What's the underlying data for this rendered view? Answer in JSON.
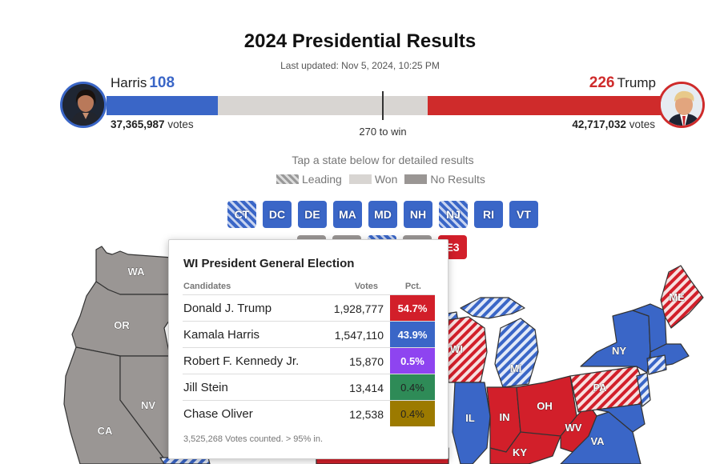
{
  "header": {
    "title": "2024 Presidential Results",
    "updated": "Last updated: Nov 5, 2024, 10:25 PM"
  },
  "harris": {
    "name": "Harris",
    "ev": "108",
    "popular_num": "37,365,987",
    "popular_unit": "votes",
    "color": "#3a66c7"
  },
  "trump": {
    "name": "Trump",
    "ev": "226",
    "popular_num": "42,717,032",
    "popular_unit": "votes",
    "color": "#cf2b2b"
  },
  "progress": {
    "dem_ev": 108,
    "rep_ev": 226,
    "total_ev": 538
  },
  "to_win": "270 to win",
  "instructions": "Tap a state below for detailed results",
  "legend": {
    "leading": "Leading",
    "won": "Won",
    "no_results": "No Results"
  },
  "chips": [
    {
      "abbr": "CT",
      "status": "leading"
    },
    {
      "abbr": "DC",
      "status": "won"
    },
    {
      "abbr": "DE",
      "status": "won"
    },
    {
      "abbr": "MA",
      "status": "won"
    },
    {
      "abbr": "MD",
      "status": "won"
    },
    {
      "abbr": "NH",
      "status": "won"
    },
    {
      "abbr": "NJ",
      "status": "leading"
    },
    {
      "abbr": "RI",
      "status": "won"
    },
    {
      "abbr": "VT",
      "status": "won"
    }
  ],
  "chip_partial": "E3",
  "map_labels": {
    "wa": "WA",
    "or": "OR",
    "nv": "NV",
    "ca": "CA",
    "wi": "WI",
    "mi": "MI",
    "il": "IL",
    "in": "IN",
    "oh": "OH",
    "ky": "KY",
    "wv": "WV",
    "va": "VA",
    "pa": "PA",
    "ny": "NY",
    "me": "ME"
  },
  "popup": {
    "title": "WI President General Election",
    "col_candidates": "Candidates",
    "col_votes": "Votes",
    "col_pct": "Pct.",
    "rows": [
      {
        "name": "Donald J. Trump",
        "votes": "1,928,777",
        "pct": "54.7%",
        "color": "#d21f2a"
      },
      {
        "name": "Kamala Harris",
        "votes": "1,547,110",
        "pct": "43.9%",
        "color": "#3a66c7"
      },
      {
        "name": "Robert F. Kennedy Jr.",
        "votes": "15,870",
        "pct": "0.5%",
        "color": "#8e44f0"
      },
      {
        "name": "Jill Stein",
        "votes": "13,414",
        "pct": "0.4%",
        "color": "#2e8b57"
      },
      {
        "name": "Chase Oliver",
        "votes": "12,538",
        "pct": "0.4%",
        "color": "#9c7a00"
      }
    ],
    "footnote": "3,525,268 Votes counted. > 95% in."
  }
}
